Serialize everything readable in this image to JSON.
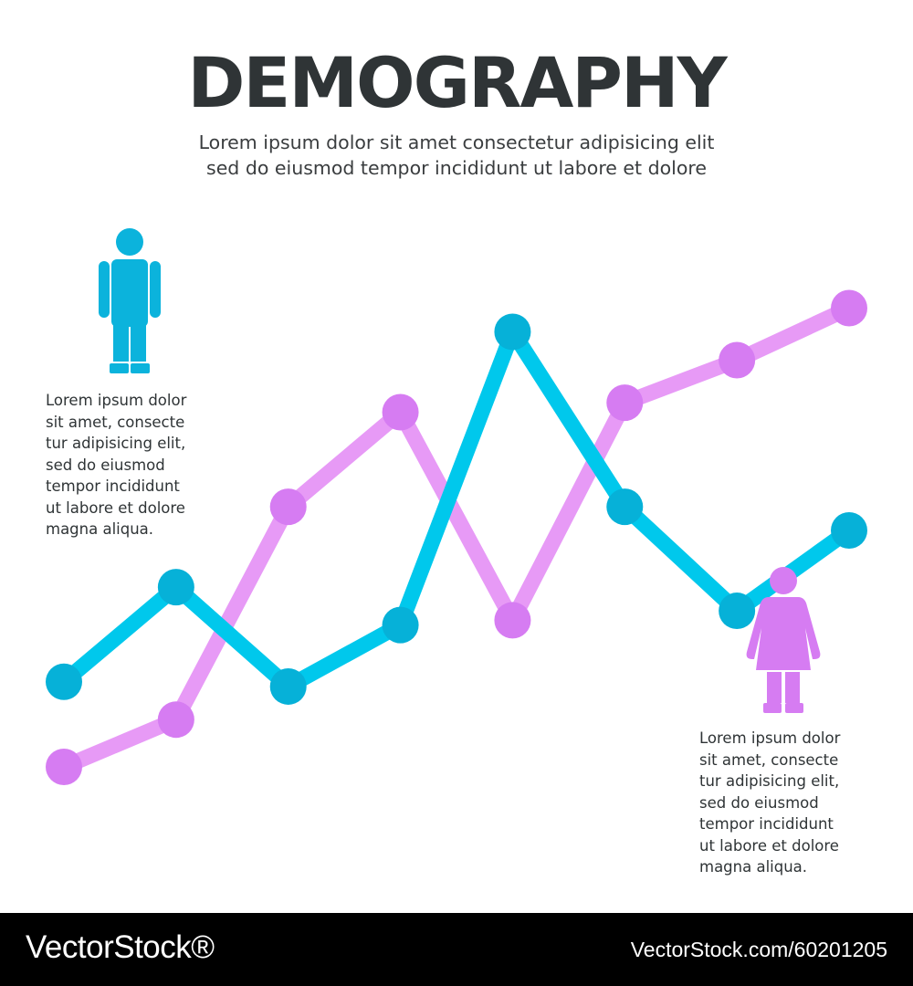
{
  "header": {
    "title": "DEMOGRAPHY",
    "subtitle_lines": [
      "Lorem ipsum dolor sit amet consectetur adipisicing elit",
      "sed do eiusmod tempor incididunt ut labore et dolore"
    ]
  },
  "left_panel": {
    "icon": "male-person-icon",
    "text_lines": [
      "Lorem ipsum dolor",
      "sit amet, consecte",
      "tur adipisicing elit,",
      "sed  do  eiusmod",
      "tempor incididunt",
      "ut labore et dolore",
      "magna aliqua."
    ]
  },
  "right_panel": {
    "icon": "female-person-icon",
    "text_lines": [
      "Lorem ipsum dolor",
      "sit amet, consecte",
      "tur adipisicing elit,",
      "sed  do  eiusmod",
      "tempor incididunt",
      "ut labore et dolore",
      "magna aliqua."
    ]
  },
  "chart_data": {
    "type": "line",
    "title": "",
    "xlabel": "",
    "ylabel": "",
    "grid": false,
    "x": [
      1,
      2,
      3,
      4,
      5,
      6,
      7,
      8
    ],
    "ylim": [
      0,
      100
    ],
    "series": [
      {
        "color": "#00c8ec",
        "marker_color": "#06b1d8",
        "values": [
          18,
          38,
          17,
          30,
          92,
          55,
          33,
          50
        ]
      },
      {
        "color": "#e79af6",
        "marker_color": "#d67cf2",
        "values": [
          0,
          10,
          55,
          75,
          31,
          77,
          86,
          97
        ]
      }
    ]
  },
  "footer": {
    "brand": "VectorStock®",
    "image_id": "VectorStock.com/60201205"
  }
}
